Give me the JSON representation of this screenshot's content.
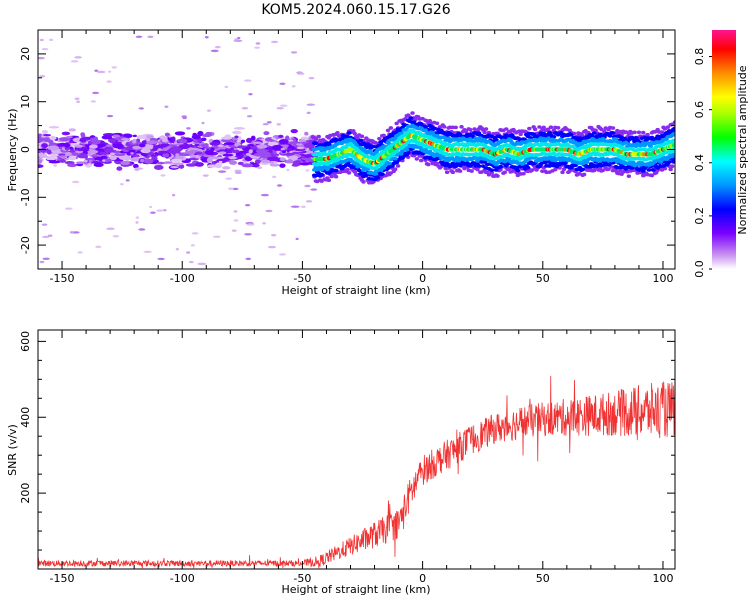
{
  "title": "KOM5.2024.060.15.17.G26",
  "chart_data": [
    {
      "type": "heatmap",
      "xlabel": "Height of straight line (km)",
      "ylabel": "Frequency (Hz)",
      "xlim": [
        -160,
        105
      ],
      "ylim": [
        -25,
        25
      ],
      "xticks": [
        -150,
        -100,
        -50,
        0,
        50,
        100
      ],
      "yticks": [
        -20,
        -10,
        0,
        10,
        20
      ],
      "colorbar": {
        "label": "Normalized spectral amplitude",
        "range": [
          0,
          0.9
        ],
        "ticks": [
          0.0,
          0.2,
          0.4,
          0.6,
          0.8
        ]
      },
      "signal_track": {
        "x": [
          -45,
          -40,
          -35,
          -30,
          -25,
          -20,
          -15,
          -10,
          -5,
          0,
          5,
          10,
          15,
          20,
          25,
          30,
          35,
          40,
          45,
          50,
          55,
          60,
          65,
          70,
          75,
          80,
          85,
          90,
          95,
          100,
          105
        ],
        "y": [
          -2,
          -2,
          -1,
          0,
          -2,
          -3,
          -1,
          1,
          3,
          2,
          1,
          0,
          0,
          0,
          0,
          -1,
          0,
          -1,
          0,
          0,
          0,
          0,
          -1,
          0,
          0,
          0,
          -1,
          -1,
          -1,
          0,
          1
        ]
      },
      "noise_region": {
        "x_range": [
          -160,
          -45
        ],
        "y_range": [
          -15,
          15
        ]
      }
    },
    {
      "type": "line",
      "xlabel": "Height of straight line (km)",
      "ylabel": "SNR (v/v)",
      "xlim": [
        -160,
        105
      ],
      "ylim": [
        0,
        630
      ],
      "xticks": [
        -150,
        -100,
        -50,
        0,
        50,
        100
      ],
      "yticks": [
        200,
        400,
        600
      ],
      "color": "#f03232",
      "x": [
        -160,
        -50,
        -43,
        -30,
        -20,
        -10,
        -5,
        0,
        10,
        20,
        30,
        40,
        50,
        60,
        70,
        80,
        90,
        100,
        105
      ],
      "y": [
        15,
        15,
        20,
        60,
        90,
        120,
        200,
        260,
        300,
        340,
        370,
        385,
        395,
        400,
        405,
        410,
        415,
        420,
        420
      ],
      "noise_amplitude": [
        8,
        8,
        15,
        25,
        35,
        40,
        45,
        40,
        40,
        40,
        40,
        45,
        45,
        50,
        55,
        60,
        70,
        75,
        75
      ]
    }
  ]
}
